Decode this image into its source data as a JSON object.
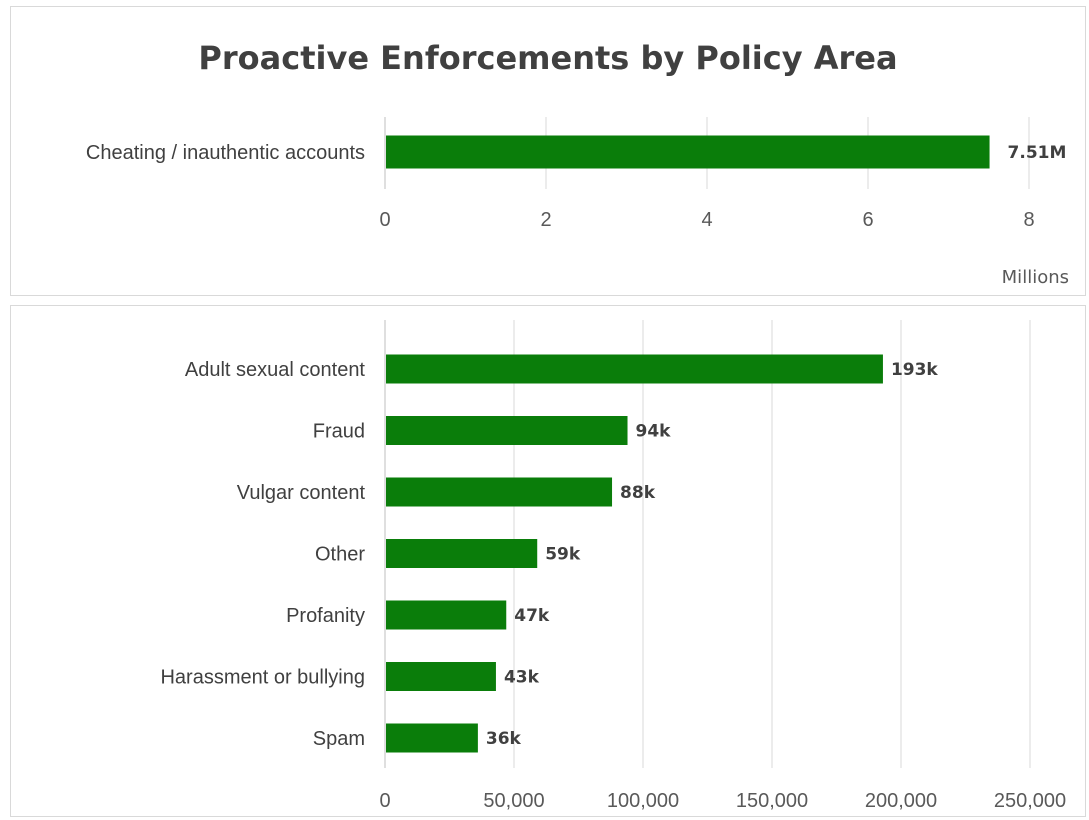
{
  "chart_data": [
    {
      "type": "bar",
      "orientation": "horizontal",
      "title": "Proactive Enforcements by Policy Area",
      "categories": [
        "Cheating / inauthentic accounts"
      ],
      "values": [
        7.51
      ],
      "data_labels": [
        "7.51M"
      ],
      "xlim": [
        0,
        8
      ],
      "xticks": [
        0,
        2,
        4,
        6,
        8
      ],
      "xtick_labels": [
        "0",
        "2",
        "4",
        "6",
        "8"
      ],
      "unit_label": "Millions",
      "grid": true,
      "bar_color": "#0a7d0a"
    },
    {
      "type": "bar",
      "orientation": "horizontal",
      "categories": [
        "Adult sexual content",
        "Fraud",
        "Vulgar content",
        "Other",
        "Profanity",
        "Harassment or bullying",
        "Spam"
      ],
      "values": [
        193000,
        94000,
        88000,
        59000,
        47000,
        43000,
        36000
      ],
      "data_labels": [
        "193k",
        "94k",
        "88k",
        "59k",
        "47k",
        "43k",
        "36k"
      ],
      "xlim": [
        0,
        250000
      ],
      "xticks": [
        0,
        50000,
        100000,
        150000,
        200000,
        250000
      ],
      "xtick_labels": [
        "0",
        "50,000",
        "100,000",
        "150,000",
        "200,000",
        "250,000"
      ],
      "grid": true,
      "bar_color": "#0a7d0a"
    }
  ]
}
